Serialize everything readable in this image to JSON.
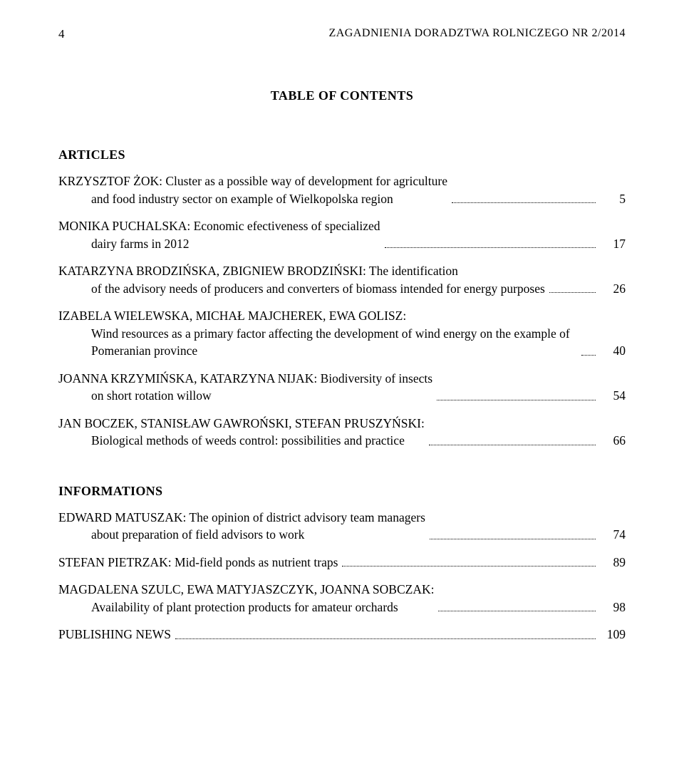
{
  "header": {
    "page_number": "4",
    "journal_title": "ZAGADNIENIA DORADZTWA ROLNICZEGO NR 2/2014"
  },
  "toc_heading": "TABLE OF CONTENTS",
  "sections": {
    "articles": {
      "label": "ARTICLES",
      "entries": [
        {
          "line1": "KRZYSZTOF ŻOK: Cluster as a possible way of development for agriculture",
          "rest": "and food industry sector on example of Wielkopolska region",
          "page": "5"
        },
        {
          "line1": "MONIKA PUCHALSKA: Economic efectiveness of specialized",
          "rest": "dairy farms in 2012",
          "page": "17"
        },
        {
          "line1": "KATARZYNA BRODZIŃSKA, ZBIGNIEW BRODZIŃSKI: The identification",
          "rest": "of the advisory needs of producers and converters of biomass intended for energy purposes",
          "page": "26"
        },
        {
          "line1": "IZABELA WIELEWSKA, MICHAŁ MAJCHEREK, EWA GOLISZ:",
          "rest": "Wind resources as a primary factor affecting the development of wind energy on the example of Pomeranian province",
          "page": "40"
        },
        {
          "line1": "JOANNA KRZYMIŃSKA, KATARZYNA NIJAK: Biodiversity of insects",
          "rest": "on short rotation willow",
          "page": "54"
        },
        {
          "line1": "JAN BOCZEK, STANISŁAW GAWROŃSKI, STEFAN PRUSZYŃSKI:",
          "rest": "Biological methods of weeds control: possibilities and practice",
          "page": "66"
        }
      ]
    },
    "informations": {
      "label": "INFORMATIONS",
      "entries": [
        {
          "line1": "EDWARD MATUSZAK: The opinion of district advisory team managers",
          "rest": "about preparation of field advisors to work",
          "page": "74"
        },
        {
          "line1": "STEFAN PIETRZAK: Mid-field ponds as nutrient traps",
          "rest": "",
          "page": "89"
        },
        {
          "line1": "MAGDALENA SZULC, EWA MATYJASZCZYK, JOANNA SOBCZAK:",
          "rest": "Availability of plant protection products for amateur orchards",
          "page": "98"
        },
        {
          "line1": "PUBLISHING NEWS",
          "rest": "",
          "page": "109"
        }
      ]
    }
  }
}
